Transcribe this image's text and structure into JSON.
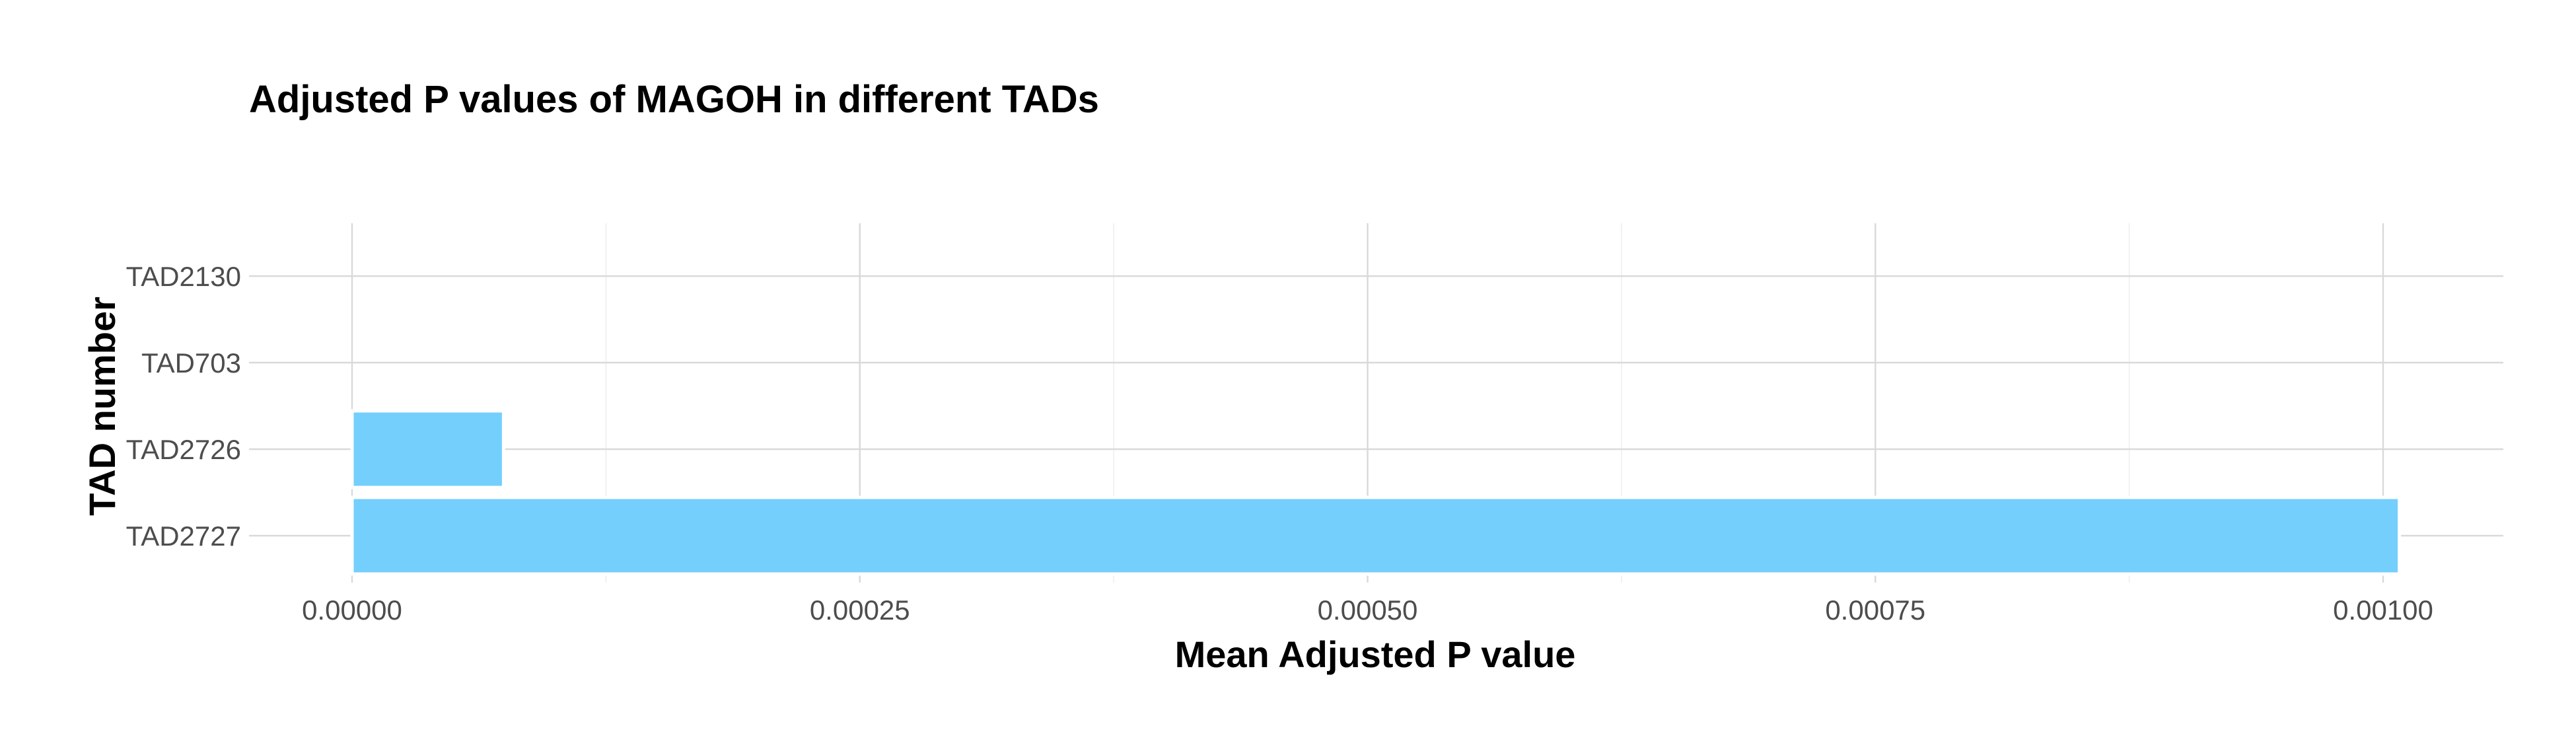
{
  "chart_data": {
    "type": "bar",
    "orientation": "horizontal",
    "title": "Adjusted P values of MAGOH in different TADs",
    "xlabel": "Mean Adjusted P value",
    "ylabel": "TAD number",
    "categories": [
      "TAD2130",
      "TAD703",
      "TAD2726",
      "TAD2727"
    ],
    "values": [
      0,
      0,
      7.46e-05,
      0.001008
    ],
    "xlim": [
      -5e-05,
      0.00106
    ],
    "xticks": [
      0,
      0.00025,
      0.0005,
      0.00075,
      0.001
    ],
    "xtick_labels": [
      "0.00000",
      "0.00025",
      "0.00050",
      "0.00075",
      "0.00100"
    ],
    "grid": true,
    "legend": "none",
    "bar_color": "#74CFFC"
  }
}
